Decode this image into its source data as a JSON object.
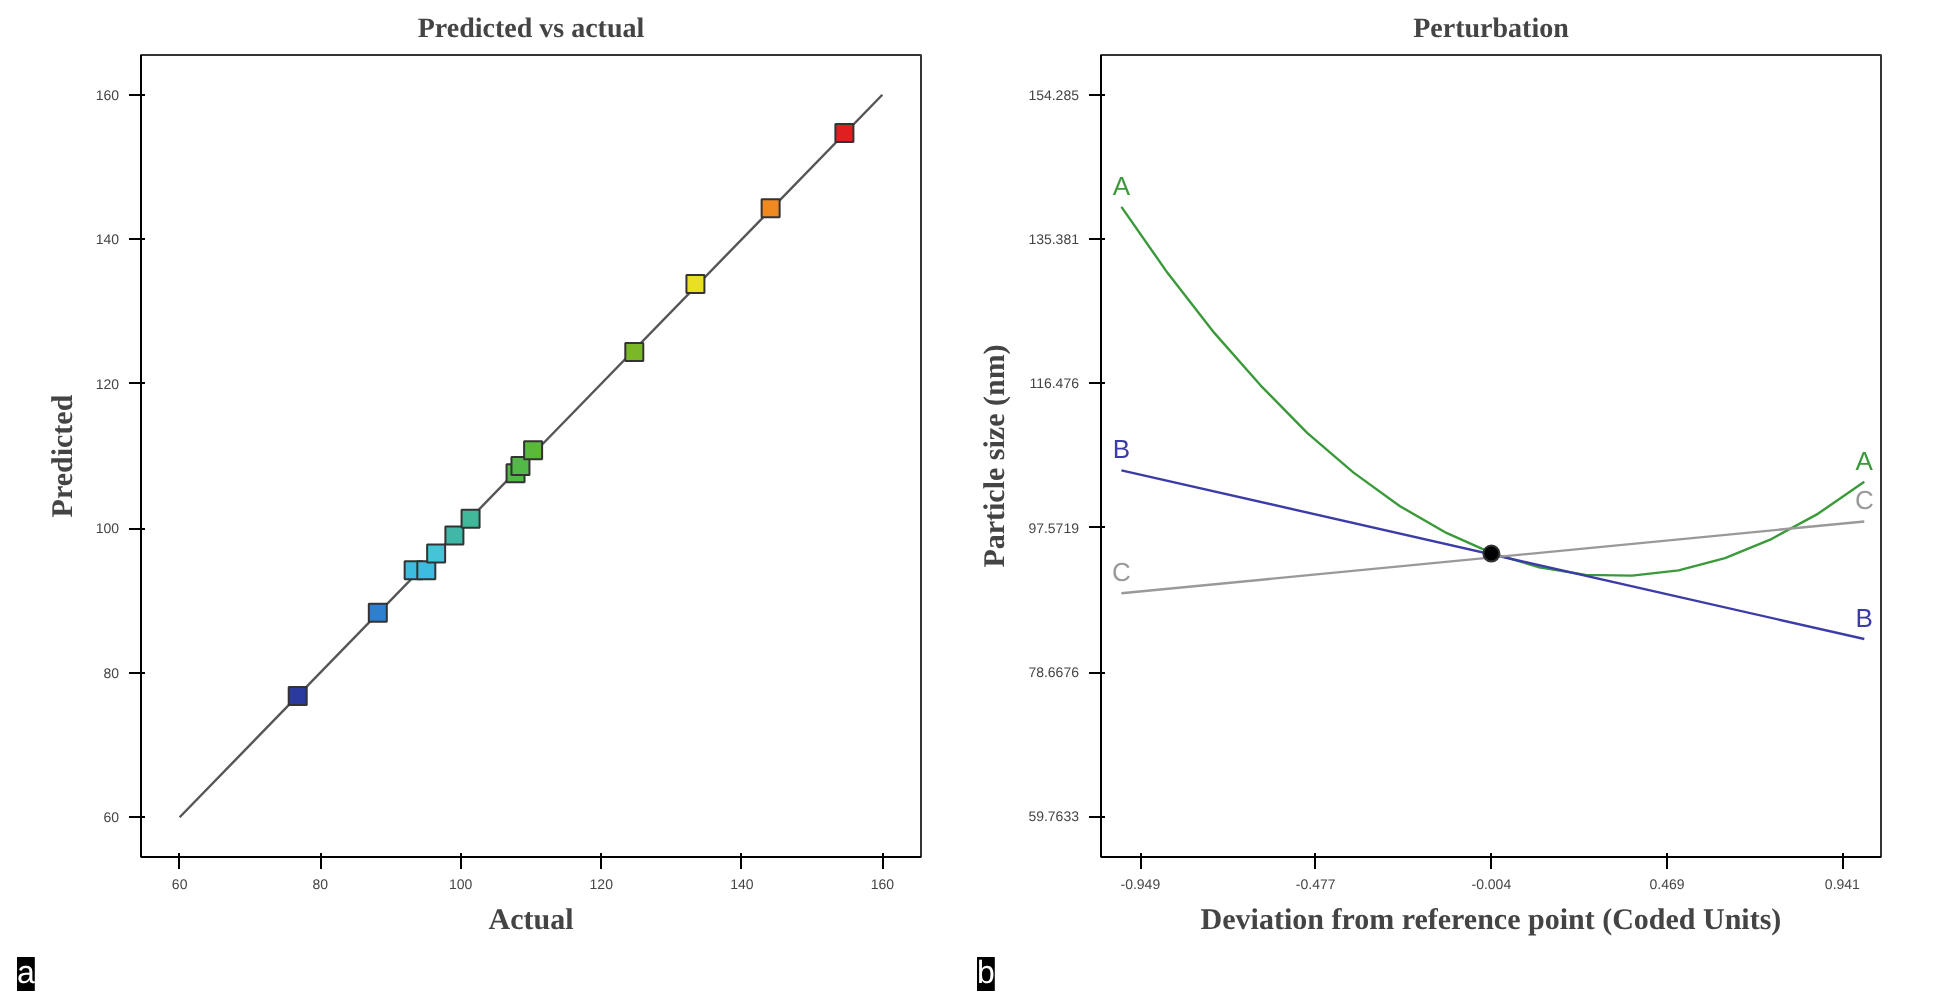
{
  "chart_data": [
    {
      "type": "scatter",
      "title": "Predicted vs actual",
      "xlabel": "Actual",
      "ylabel": "Predicted",
      "annotations": [
        "a"
      ],
      "grid": false,
      "marker": "square",
      "xlim": [
        54.5,
        165.5
      ],
      "ylim": [
        54.5,
        165.5
      ],
      "xticks": [
        60,
        80,
        100,
        120,
        140,
        160
      ],
      "yticks": [
        60,
        80,
        100,
        120,
        140,
        160
      ],
      "series": [
        {
          "type": "line",
          "color": "#555555",
          "marker": "none",
          "x": [
            60,
            160
          ],
          "values": [
            60,
            160
          ]
        },
        {
          "type": "scatter",
          "colors": [
            "#2b3a9e",
            "#2e7fd0",
            "#3cbde0",
            "#3cbde0",
            "#45c4d8",
            "#40b8a8",
            "#40b89a",
            "#52b848",
            "#52b848",
            "#5ab83a",
            "#7ab82a",
            "#e8e020",
            "#f08a20",
            "#e02020"
          ],
          "x": [
            76.8,
            88.2,
            93.3,
            95.1,
            96.5,
            99.1,
            101.4,
            107.8,
            108.5,
            110.3,
            124.7,
            133.4,
            144.1,
            154.6
          ],
          "values": [
            76.8,
            88.3,
            94.2,
            94.2,
            96.5,
            99.0,
            101.3,
            107.6,
            108.6,
            110.8,
            124.4,
            133.8,
            144.3,
            154.7
          ]
        }
      ]
    },
    {
      "type": "line",
      "title": "Perturbation",
      "xlabel": "Deviation from reference point (Coded Units)",
      "ylabel": "Particle size (nm)",
      "annotations": [
        "b"
      ],
      "grid": false,
      "marker": "none",
      "line_style": "solid",
      "xlim": [
        -1.055,
        1.045
      ],
      "ylim": [
        54.45,
        159.5
      ],
      "xticks": [
        -0.949,
        -0.477,
        -0.004,
        0.469,
        0.941
      ],
      "yticks": [
        59.7633,
        78.6676,
        97.5719,
        116.476,
        135.381,
        154.285
      ],
      "series": [
        {
          "name": "A",
          "color": "#3a9a3a",
          "x": [
            -1,
            -0.875,
            -0.75,
            -0.625,
            -0.5,
            -0.375,
            -0.25,
            -0.125,
            0,
            0.125,
            0.25,
            0.375,
            0.5,
            0.625,
            0.75,
            0.875,
            1
          ],
          "values": [
            139.6,
            130.9,
            123.1,
            116.2,
            110.0,
            104.8,
            100.4,
            96.9,
            94.2,
            92.4,
            91.4,
            91.3,
            92.0,
            93.6,
            96.1,
            99.4,
            103.6
          ]
        },
        {
          "name": "B",
          "color": "#3c3ca8",
          "x": [
            -1,
            1
          ],
          "values": [
            105.1,
            83.0
          ]
        },
        {
          "name": "C",
          "color": "#999999",
          "x": [
            -1,
            1
          ],
          "values": [
            89.0,
            98.4
          ]
        },
        {
          "type": "scatter",
          "marker": "circle",
          "color": "#000000",
          "x": [
            -0.004
          ],
          "values": [
            94.2
          ]
        }
      ]
    }
  ]
}
